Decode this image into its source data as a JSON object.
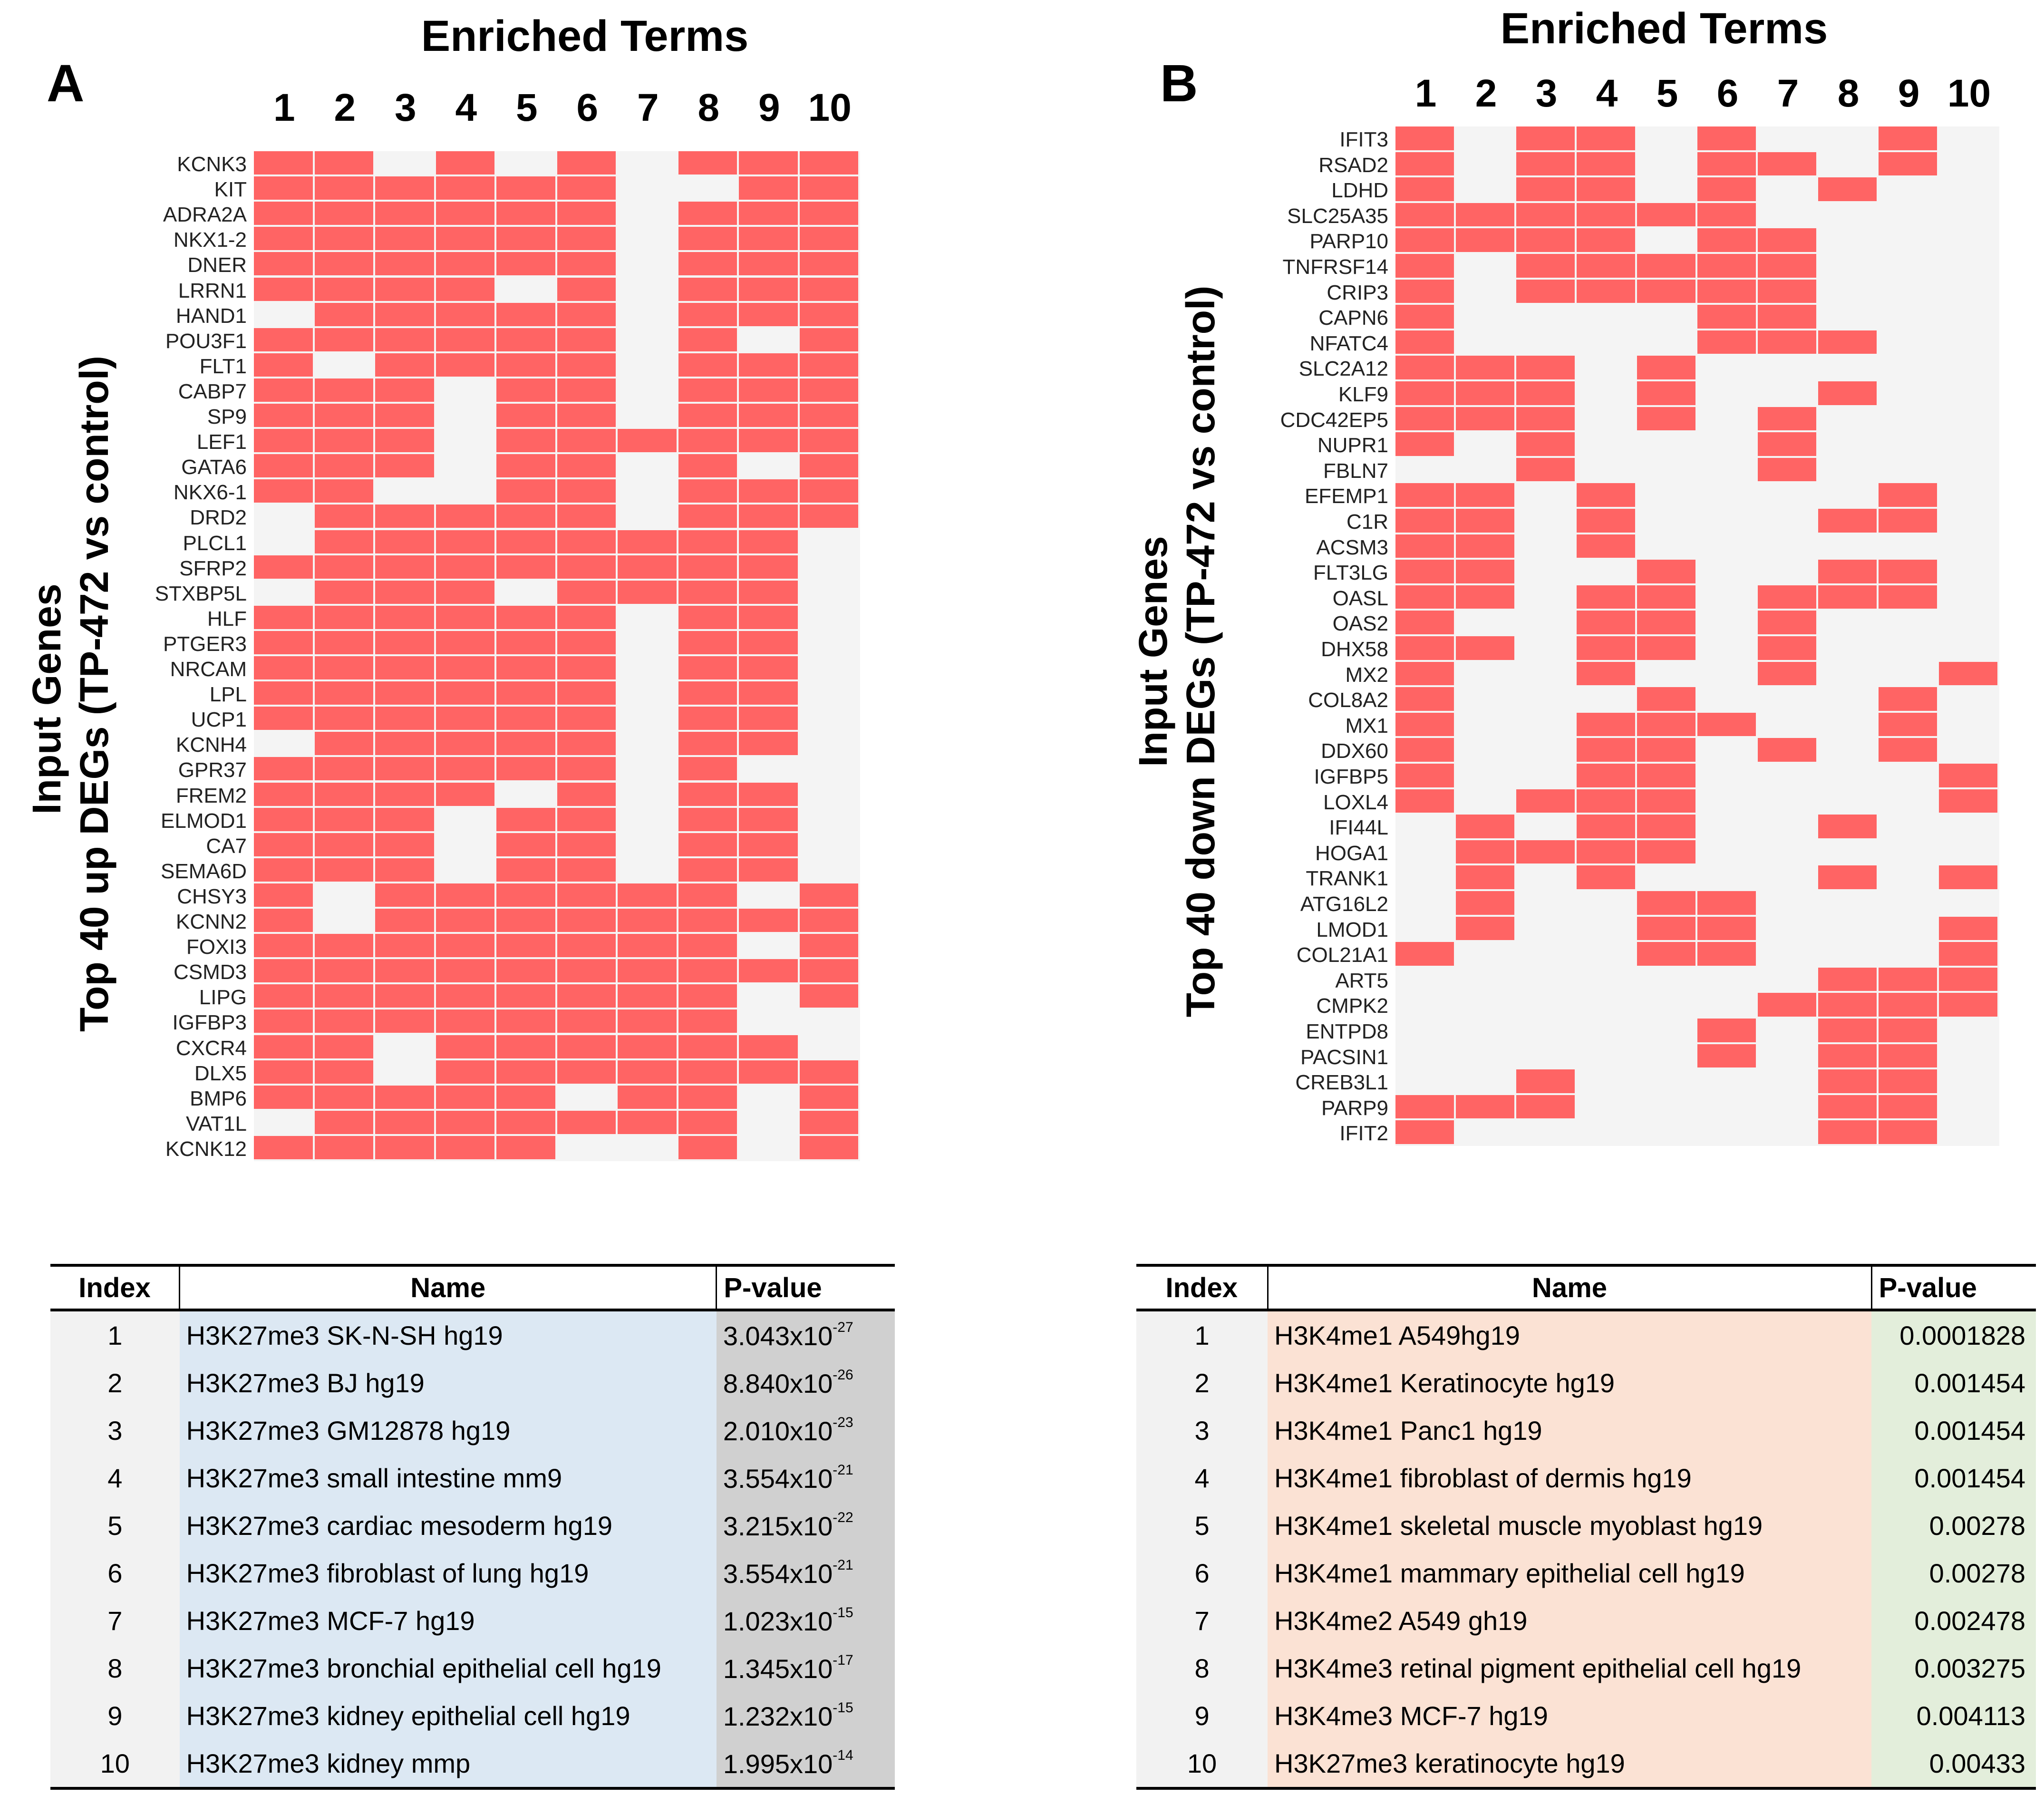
{
  "colors": {
    "hit": "#ff6464",
    "miss": "#f4f4f4",
    "tableA_name_bg": "#dce8f3",
    "tableA_p_bg": "#d0d0d0",
    "tableB_name_bg": "#fbe2d4",
    "tableB_p_bg": "#e3eedb",
    "index_bg": "#f2f2f2"
  },
  "chart_data": [
    {
      "type": "heatmap",
      "panel": "A",
      "title": "Enriched Terms",
      "xlabel": "Enriched Terms",
      "ylabel_line1": "Input Genes",
      "ylabel_line2": "Top 40 up DEGs (TP-472 vs control)",
      "columns": [
        "1",
        "2",
        "3",
        "4",
        "5",
        "6",
        "7",
        "8",
        "9",
        "10"
      ],
      "rows": [
        "KCNK3",
        "KIT",
        "ADRA2A",
        "NKX1-2",
        "DNER",
        "LRRN1",
        "HAND1",
        "POU3F1",
        "FLT1",
        "CABP7",
        "SP9",
        "LEF1",
        "GATA6",
        "NKX6-1",
        "DRD2",
        "PLCL1",
        "SFRP2",
        "STXBP5L",
        "HLF",
        "PTGER3",
        "NRCAM",
        "LPL",
        "UCP1",
        "KCNH4",
        "GPR37",
        "FREM2",
        "ELMOD1",
        "CA7",
        "SEMA6D",
        "CHSY3",
        "KCNN2",
        "FOXI3",
        "CSMD3",
        "LIPG",
        "IGFBP3",
        "CXCR4",
        "DLX5",
        "BMP6",
        "VAT1L",
        "KCNK12"
      ],
      "matrix": [
        "1101010111",
        "1111110011",
        "1111110111",
        "1111110111",
        "1111110111",
        "1111010111",
        "0111110111",
        "1111110101",
        "1011110111",
        "1110110111",
        "1110110111",
        "1110111111",
        "1110110101",
        "1100110111",
        "0111110111",
        "0111111110",
        "1111111110",
        "0111011110",
        "1111110110",
        "1111110110",
        "1111110110",
        "1111110110",
        "1111110110",
        "0111110110",
        "1111110100",
        "1111010110",
        "1110110110",
        "1110110110",
        "1110110110",
        "1011111101",
        "1011111111",
        "1111111101",
        "1111111111",
        "1111111101",
        "1111111100",
        "1101111110",
        "1101111111",
        "1111101101",
        "0111111101",
        "1111100101"
      ]
    },
    {
      "type": "heatmap",
      "panel": "B",
      "title": "Enriched Terms",
      "xlabel": "Enriched Terms",
      "ylabel_line1": "Input Genes",
      "ylabel_line2": "Top 40 down DEGs (TP-472 vs control)",
      "columns": [
        "1",
        "2",
        "3",
        "4",
        "5",
        "6",
        "7",
        "8",
        "9",
        "10"
      ],
      "rows": [
        "IFIT3",
        "RSAD2",
        "LDHD",
        "SLC25A35",
        "PARP10",
        "TNFRSF14",
        "CRIP3",
        "CAPN6",
        "NFATC4",
        "SLC2A12",
        "KLF9",
        "CDC42EP5",
        "NUPR1",
        "FBLN7",
        "EFEMP1",
        "C1R",
        "ACSM3",
        "FLT3LG",
        "OASL",
        "OAS2",
        "DHX58",
        "MX2",
        "COL8A2",
        "MX1",
        "DDX60",
        "IGFBP5",
        "LOXL4",
        "IFI44L",
        "HOGA1",
        "TRANK1",
        "ATG16L2",
        "LMOD1",
        "COL21A1",
        "ART5",
        "CMPK2",
        "ENTPD8",
        "PACSIN1",
        "CREB3L1",
        "PARP9",
        "IFIT2"
      ],
      "matrix": [
        "1011010010",
        "1011011010",
        "1011010100",
        "1111110000",
        "1111011000",
        "1011111000",
        "1011111000",
        "1000011000",
        "1000011100",
        "1110100000",
        "1110100100",
        "1110101000",
        "1010001000",
        "0010001000",
        "1101000010",
        "1101000110",
        "1101000000",
        "1100100110",
        "1101101110",
        "1001101000",
        "1101101000",
        "1001001001",
        "1000100010",
        "1001110010",
        "1001101010",
        "1001100001",
        "1011100001",
        "0101100100",
        "0111100000",
        "0101000101",
        "0100110000",
        "0100110001",
        "1000110001",
        "0000000111",
        "0000001111",
        "0000010110",
        "0000010110",
        "0010000110",
        "1110000110",
        "1000000110"
      ]
    }
  ],
  "panelA": {
    "letter": "A"
  },
  "panelB": {
    "letter": "B"
  },
  "tableA": {
    "headers": {
      "index": "Index",
      "name": "Name",
      "pvalue": "P-value"
    },
    "rows": [
      {
        "index": "1",
        "name": "H3K27me3 SK-N-SH hg19",
        "p_mant": "3.043x10",
        "p_exp": "-27"
      },
      {
        "index": "2",
        "name": "H3K27me3 BJ hg19",
        "p_mant": "8.840x10",
        "p_exp": "-26"
      },
      {
        "index": "3",
        "name": "H3K27me3 GM12878 hg19",
        "p_mant": "2.010x10",
        "p_exp": "-23"
      },
      {
        "index": "4",
        "name": "H3K27me3 small intestine mm9",
        "p_mant": "3.554x10",
        "p_exp": "-21"
      },
      {
        "index": "5",
        "name": "H3K27me3 cardiac mesoderm hg19",
        "p_mant": "3.215x10",
        "p_exp": "-22"
      },
      {
        "index": "6",
        "name": "H3K27me3 fibroblast of lung hg19",
        "p_mant": "3.554x10",
        "p_exp": "-21"
      },
      {
        "index": "7",
        "name": "H3K27me3 MCF-7 hg19",
        "p_mant": "1.023x10",
        "p_exp": "-15"
      },
      {
        "index": "8",
        "name": "H3K27me3 bronchial epithelial cell hg19",
        "p_mant": "1.345x10",
        "p_exp": "-17"
      },
      {
        "index": "9",
        "name": "H3K27me3 kidney epithelial cell hg19",
        "p_mant": "1.232x10",
        "p_exp": "-15"
      },
      {
        "index": "10",
        "name": "H3K27me3 kidney mmp",
        "p_mant": "1.995x10",
        "p_exp": "-14"
      }
    ]
  },
  "tableB": {
    "headers": {
      "index": "Index",
      "name": "Name",
      "pvalue": "P-value"
    },
    "rows": [
      {
        "index": "1",
        "name": "H3K4me1 A549hg19",
        "p": "0.0001828"
      },
      {
        "index": "2",
        "name": "H3K4me1 Keratinocyte hg19",
        "p": "0.001454"
      },
      {
        "index": "3",
        "name": "H3K4me1 Panc1 hg19",
        "p": "0.001454"
      },
      {
        "index": "4",
        "name": "H3K4me1 fibroblast of dermis hg19",
        "p": "0.001454"
      },
      {
        "index": "5",
        "name": "H3K4me1 skeletal muscle myoblast hg19",
        "p": "0.00278"
      },
      {
        "index": "6",
        "name": "H3K4me1 mammary epithelial cell hg19",
        "p": "0.00278"
      },
      {
        "index": "7",
        "name": "H3K4me2 A549 gh19",
        "p": "0.002478"
      },
      {
        "index": "8",
        "name": "H3K4me3   retinal pigment epithelial cell hg19",
        "p": "0.003275"
      },
      {
        "index": "9",
        "name": "H3K4me3 MCF-7 hg19",
        "p": "0.004113"
      },
      {
        "index": "10",
        "name": "H3K27me3 keratinocyte hg19",
        "p": "0.00433"
      }
    ]
  }
}
